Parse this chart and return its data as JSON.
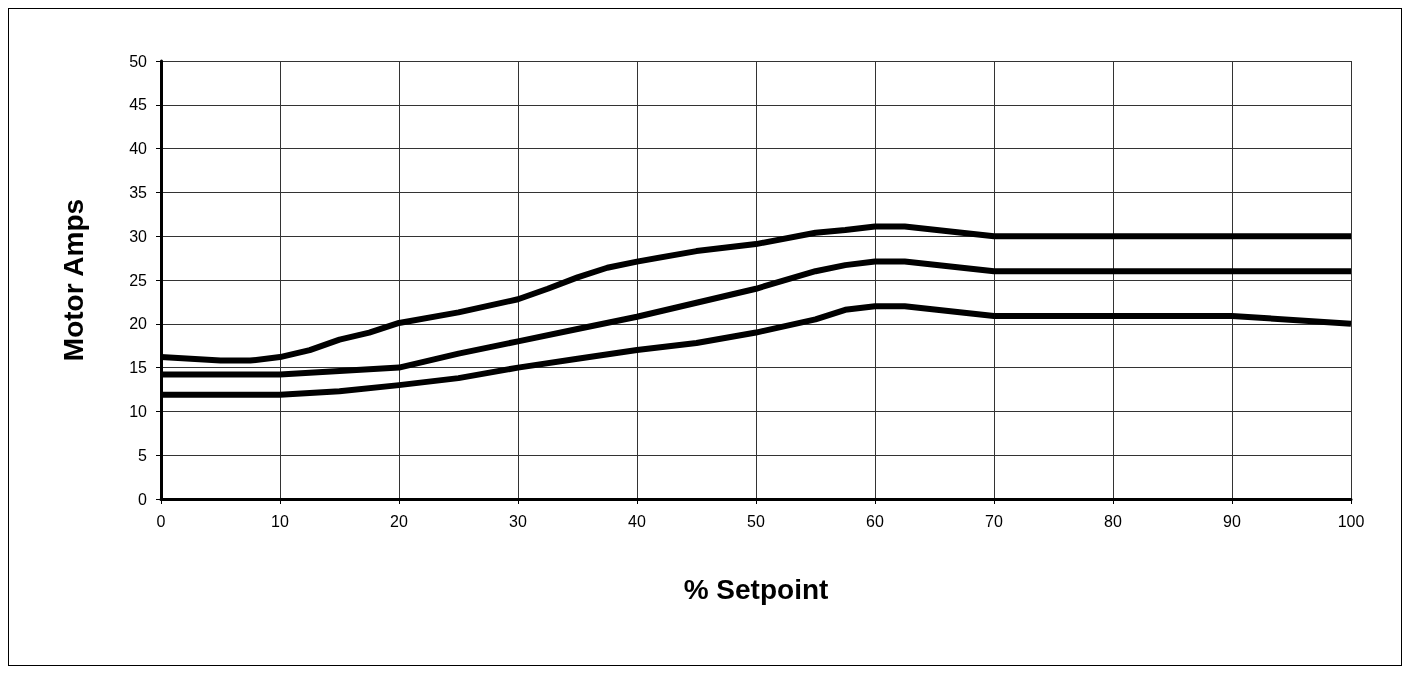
{
  "chart_data": {
    "type": "line",
    "xlabel": "% Setpoint",
    "ylabel": "Motor Amps",
    "xlim": [
      0,
      100
    ],
    "xticks": [
      0,
      10,
      20,
      30,
      40,
      50,
      60,
      70,
      80,
      90,
      100
    ],
    "ylim": [
      0,
      50
    ],
    "yticks": [
      0,
      5,
      10,
      15,
      20,
      25,
      30,
      35,
      40,
      45,
      50
    ],
    "grid": true,
    "marker": "none",
    "line_style": "solid",
    "series": [
      {
        "color": "#000000",
        "x": [
          0,
          5,
          7.5,
          10,
          12.5,
          15,
          17.5,
          20,
          25,
          30,
          32.5,
          35,
          37.5,
          40,
          45,
          50,
          55,
          57.5,
          60,
          62.5,
          70,
          100
        ],
        "values": [
          16.2,
          15.8,
          15.8,
          16.2,
          17,
          18.2,
          19,
          20.1,
          21.3,
          22.8,
          24,
          25.3,
          26.4,
          27.1,
          28.3,
          29.1,
          30.4,
          30.7,
          31.1,
          31.1,
          30,
          30
        ]
      },
      {
        "color": "#000000",
        "x": [
          0,
          10,
          15,
          20,
          25,
          30,
          35,
          40,
          45,
          50,
          55,
          57.5,
          60,
          62.5,
          70,
          100
        ],
        "values": [
          14.2,
          14.2,
          14.6,
          15,
          16.6,
          18,
          19.4,
          20.8,
          22.4,
          24,
          26,
          26.7,
          27.1,
          27.1,
          26,
          26
        ]
      },
      {
        "color": "#000000",
        "x": [
          0,
          10,
          15,
          20,
          25,
          30,
          35,
          40,
          45,
          50,
          55,
          57.5,
          60,
          62.5,
          70,
          90,
          100
        ],
        "values": [
          11.9,
          11.9,
          12.3,
          13,
          13.8,
          15,
          16,
          17,
          17.8,
          19,
          20.5,
          21.6,
          22,
          22,
          20.9,
          20.9,
          20
        ]
      }
    ]
  }
}
